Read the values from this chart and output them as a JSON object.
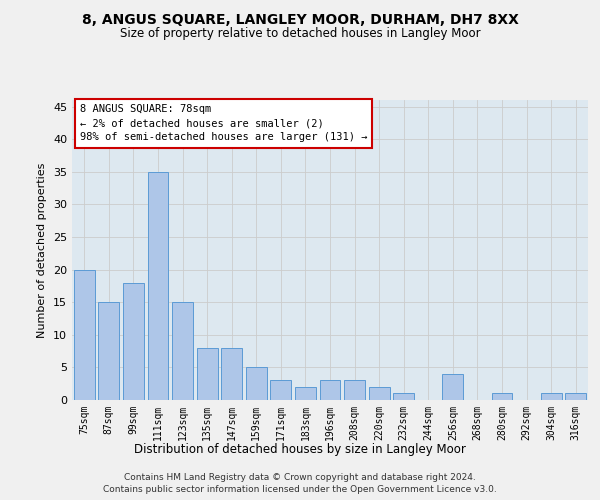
{
  "title": "8, ANGUS SQUARE, LANGLEY MOOR, DURHAM, DH7 8XX",
  "subtitle": "Size of property relative to detached houses in Langley Moor",
  "xlabel": "Distribution of detached houses by size in Langley Moor",
  "ylabel": "Number of detached properties",
  "categories": [
    "75sqm",
    "87sqm",
    "99sqm",
    "111sqm",
    "123sqm",
    "135sqm",
    "147sqm",
    "159sqm",
    "171sqm",
    "183sqm",
    "196sqm",
    "208sqm",
    "220sqm",
    "232sqm",
    "244sqm",
    "256sqm",
    "268sqm",
    "280sqm",
    "292sqm",
    "304sqm",
    "316sqm"
  ],
  "values": [
    20,
    15,
    18,
    35,
    15,
    8,
    8,
    5,
    3,
    2,
    3,
    3,
    2,
    1,
    0,
    4,
    0,
    1,
    0,
    1,
    1
  ],
  "bar_color": "#aec6e8",
  "bar_edge_color": "#5b9bd5",
  "ylim": [
    0,
    46
  ],
  "yticks": [
    0,
    5,
    10,
    15,
    20,
    25,
    30,
    35,
    40,
    45
  ],
  "annotation_title": "8 ANGUS SQUARE: 78sqm",
  "annotation_line1": "← 2% of detached houses are smaller (2)",
  "annotation_line2": "98% of semi-detached houses are larger (131) →",
  "annotation_box_color": "#ffffff",
  "annotation_box_edge": "#cc0000",
  "footer_line1": "Contains HM Land Registry data © Crown copyright and database right 2024.",
  "footer_line2": "Contains public sector information licensed under the Open Government Licence v3.0.",
  "grid_color": "#cccccc",
  "bg_color": "#dde8f0"
}
